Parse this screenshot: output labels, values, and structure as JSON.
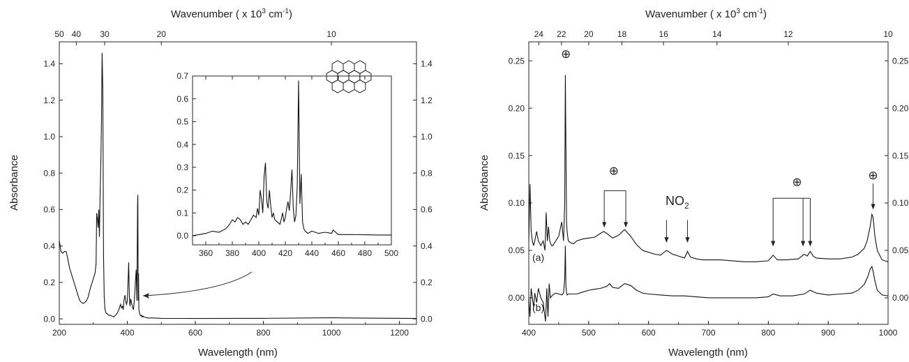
{
  "chart_data": [
    {
      "id": "left",
      "type": "line",
      "xlabel": "Wavelength (nm)",
      "ylabel": "Absorbance",
      "top_axis_label": "Wavenumber ( x 10^3 cm^-1)",
      "top_axis_label_parts": {
        "pre": "Wavenumber ( x 10",
        "sup1": "3",
        "mid": " cm",
        "sup2": "-1",
        "post": ")"
      },
      "xlim": [
        200,
        1250
      ],
      "ylim": [
        -0.03,
        1.52
      ],
      "xticks": [
        "200",
        "400",
        "600",
        "800",
        "1000",
        "1200"
      ],
      "yticks": [
        "0.0",
        "0.2",
        "0.4",
        "0.6",
        "0.8",
        "1.0",
        "1.2",
        "1.4"
      ],
      "top_ticks": [
        "50",
        "40",
        "30",
        "20",
        "10"
      ],
      "top_tick_wavenumbers": [
        50,
        40,
        30,
        20,
        10
      ],
      "series": [
        {
          "x": [
            200,
            205,
            210,
            215,
            220,
            225,
            230,
            235,
            240,
            245,
            250,
            255,
            260,
            265,
            270,
            275,
            280,
            285,
            290,
            295,
            300,
            305,
            308,
            310,
            312,
            314,
            316,
            318,
            320,
            322,
            324,
            326,
            328,
            330,
            332,
            334,
            336,
            338,
            340,
            345,
            350,
            360,
            370,
            375,
            380,
            383,
            386,
            388,
            390,
            393,
            396,
            398,
            400,
            402,
            404,
            406,
            408,
            410,
            413,
            416,
            418,
            420,
            422,
            424,
            426,
            428,
            430,
            431,
            432,
            433,
            434,
            436,
            438,
            440,
            442,
            444,
            446,
            448,
            450,
            455,
            460,
            480,
            500,
            600,
            800,
            1000,
            1100,
            1250
          ],
          "y": [
            0.43,
            0.37,
            0.36,
            0.37,
            0.37,
            0.33,
            0.28,
            0.25,
            0.22,
            0.19,
            0.16,
            0.13,
            0.1,
            0.09,
            0.085,
            0.09,
            0.1,
            0.12,
            0.16,
            0.19,
            0.22,
            0.25,
            0.3,
            0.58,
            0.55,
            0.5,
            0.6,
            0.45,
            0.68,
            0.85,
            1.1,
            1.46,
            1.25,
            0.35,
            0.12,
            0.06,
            0.04,
            0.03,
            0.03,
            0.02,
            0.02,
            0.01,
            0.03,
            0.05,
            0.08,
            0.06,
            0.07,
            0.05,
            0.1,
            0.13,
            0.09,
            0.08,
            0.1,
            0.2,
            0.31,
            0.12,
            0.07,
            0.11,
            0.08,
            0.06,
            0.05,
            0.09,
            0.15,
            0.21,
            0.27,
            0.1,
            0.62,
            0.68,
            0.1,
            0.25,
            0.05,
            0.03,
            0.02,
            0.015,
            0.02,
            0.01,
            0.015,
            0.01,
            0.01,
            0.008,
            0.005,
            0.005,
            0.003,
            0.002,
            0.003,
            0.006,
            0.004,
            0.002
          ]
        }
      ],
      "inset": {
        "xlim": [
          350,
          500
        ],
        "ylim": [
          -0.04,
          0.7
        ],
        "xticks": [
          "360",
          "380",
          "400",
          "420",
          "440",
          "460",
          "480",
          "500"
        ],
        "yticks": [
          "0.0",
          "0.1",
          "0.2",
          "0.3",
          "0.4",
          "0.5",
          "0.6",
          "0.7"
        ],
        "series": [
          {
            "x": [
              350,
              355,
              360,
              365,
              370,
              375,
              378,
              380,
              382,
              384,
              386,
              388,
              390,
              392,
              394,
              396,
              398,
              399,
              400,
              401,
              402,
              403,
              404,
              405,
              406,
              407,
              408,
              409,
              410,
              411,
              412,
              414,
              416,
              418,
              419,
              420,
              421,
              422,
              423,
              424,
              425,
              426,
              427,
              428,
              429,
              430,
              431,
              432,
              433,
              434,
              435,
              437,
              440,
              445,
              450,
              455,
              456,
              460,
              470,
              480,
              490,
              500
            ],
            "y": [
              0.0,
              0.005,
              0.01,
              0.02,
              0.015,
              0.03,
              0.05,
              0.07,
              0.06,
              0.08,
              0.07,
              0.05,
              0.06,
              0.05,
              0.07,
              0.09,
              0.08,
              0.12,
              0.09,
              0.2,
              0.16,
              0.1,
              0.26,
              0.32,
              0.15,
              0.12,
              0.2,
              0.13,
              0.08,
              0.1,
              0.07,
              0.06,
              0.05,
              0.1,
              0.06,
              0.08,
              0.12,
              0.15,
              0.11,
              0.19,
              0.29,
              0.12,
              0.06,
              0.09,
              0.22,
              0.68,
              0.14,
              0.27,
              0.06,
              0.03,
              0.02,
              0.01,
              0.02,
              0.01,
              0.015,
              0.01,
              0.025,
              0.005,
              0.005,
              0.004,
              0.003,
              0.003
            ]
          }
        ]
      }
    },
    {
      "id": "right",
      "type": "line",
      "xlabel": "Wavelength (nm)",
      "ylabel": "Absorbance",
      "top_axis_label": "Wavenumber ( x 10^3 cm^-1)",
      "top_axis_label_parts": {
        "pre": "Wavenumber ( x 10",
        "sup1": "3",
        "mid": " cm",
        "sup2": "-1",
        "post": ")"
      },
      "xlim": [
        400,
        1000
      ],
      "ylim": [
        -0.028,
        0.27
      ],
      "xticks": [
        "400",
        "500",
        "600",
        "700",
        "800",
        "900",
        "1000"
      ],
      "yticks": [
        "0.00",
        "0.05",
        "0.10",
        "0.15",
        "0.20",
        "0.25"
      ],
      "top_ticks": [
        "24",
        "22",
        "20",
        "18",
        "16",
        "14",
        "12",
        "10"
      ],
      "top_tick_wavenumbers": [
        24,
        22,
        20,
        18,
        16,
        14,
        12,
        10
      ],
      "series": [
        {
          "name": "(a)",
          "x": [
            400,
            402,
            404,
            406,
            408,
            410,
            413,
            416,
            420,
            424,
            427,
            429,
            431,
            433,
            435,
            438,
            440,
            445,
            450,
            455,
            458,
            460,
            461,
            462,
            463,
            464,
            466,
            470,
            475,
            480,
            490,
            500,
            510,
            520,
            525,
            530,
            540,
            550,
            560,
            570,
            580,
            590,
            600,
            610,
            620,
            630,
            640,
            650,
            660,
            665,
            670,
            680,
            690,
            700,
            720,
            740,
            760,
            780,
            800,
            808,
            815,
            830,
            850,
            860,
            865,
            870,
            875,
            880,
            900,
            920,
            940,
            950,
            960,
            965,
            970,
            973,
            975,
            978,
            982,
            990,
            1000
          ],
          "y": [
            0.06,
            0.12,
            0.07,
            0.06,
            0.055,
            0.06,
            0.07,
            0.06,
            0.055,
            0.06,
            0.05,
            0.09,
            0.06,
            0.075,
            0.06,
            0.055,
            0.055,
            0.06,
            0.065,
            0.08,
            0.06,
            0.1,
            0.235,
            0.16,
            0.08,
            0.07,
            0.06,
            0.058,
            0.057,
            0.06,
            0.062,
            0.063,
            0.064,
            0.068,
            0.07,
            0.068,
            0.063,
            0.066,
            0.072,
            0.065,
            0.056,
            0.05,
            0.048,
            0.046,
            0.045,
            0.05,
            0.046,
            0.044,
            0.042,
            0.049,
            0.043,
            0.041,
            0.04,
            0.04,
            0.04,
            0.039,
            0.038,
            0.038,
            0.039,
            0.045,
            0.04,
            0.04,
            0.041,
            0.046,
            0.044,
            0.049,
            0.044,
            0.042,
            0.041,
            0.041,
            0.043,
            0.046,
            0.052,
            0.06,
            0.075,
            0.088,
            0.085,
            0.065,
            0.05,
            0.04,
            0.038
          ]
        },
        {
          "name": "(b)",
          "x": [
            400,
            402,
            404,
            406,
            408,
            410,
            413,
            416,
            420,
            424,
            426,
            428,
            430,
            432,
            434,
            436,
            440,
            445,
            450,
            455,
            458,
            460,
            461,
            462,
            463,
            464,
            466,
            470,
            480,
            490,
            500,
            510,
            520,
            530,
            535,
            540,
            550,
            560,
            570,
            580,
            590,
            600,
            620,
            640,
            660,
            680,
            700,
            720,
            740,
            760,
            780,
            800,
            808,
            820,
            840,
            860,
            865,
            870,
            880,
            900,
            920,
            940,
            950,
            960,
            966,
            970,
            973,
            975,
            978,
            982,
            990,
            1000
          ],
          "y": [
            0.0,
            -0.02,
            0.01,
            0.0,
            -0.01,
            0.005,
            -0.005,
            0.01,
            0.0,
            -0.005,
            -0.015,
            -0.025,
            0.01,
            -0.02,
            0.015,
            0.0,
            0.003,
            0.005,
            0.004,
            0.003,
            0.005,
            0.02,
            0.055,
            0.012,
            0.005,
            0.003,
            0.004,
            0.004,
            0.004,
            0.006,
            0.008,
            0.009,
            0.01,
            0.012,
            0.015,
            0.011,
            0.01,
            0.015,
            0.013,
            0.008,
            0.005,
            0.004,
            0.003,
            0.002,
            0.002,
            0.001,
            0.0,
            0.0,
            0.0,
            0.0,
            0.0,
            0.001,
            0.004,
            0.002,
            0.002,
            0.004,
            0.006,
            0.008,
            0.005,
            0.003,
            0.004,
            0.005,
            0.008,
            0.014,
            0.022,
            0.03,
            0.033,
            0.028,
            0.018,
            0.008,
            0.003,
            0.002
          ]
        }
      ],
      "annotations": {
        "series_labels": [
          "(a)",
          "(b)"
        ],
        "no2_main": "NO",
        "no2_sub": "2",
        "cation_symbol": "⊕"
      },
      "markers": {
        "cation_peaks_single": [
          {
            "label_x": 462,
            "label_y": 0.253
          },
          {
            "label_x": 975,
            "label_y": 0.125,
            "arrow_to": 0.093
          }
        ],
        "cation_bracket_green": {
          "label_x": 542,
          "label_y": 0.13,
          "from": 526,
          "to": 562,
          "bar_y": 0.113,
          "arrow_to": 0.074
        },
        "no2_arrows": {
          "label_x": 648,
          "label_y": 0.098,
          "at": [
            630,
            665
          ],
          "top": 0.082,
          "bottom": 0.058
        },
        "cation_bracket_triple": {
          "label_x": 848,
          "label_y": 0.118,
          "at": [
            808,
            858,
            870
          ],
          "bar_y": 0.105,
          "arrow_to": 0.054
        }
      }
    }
  ]
}
